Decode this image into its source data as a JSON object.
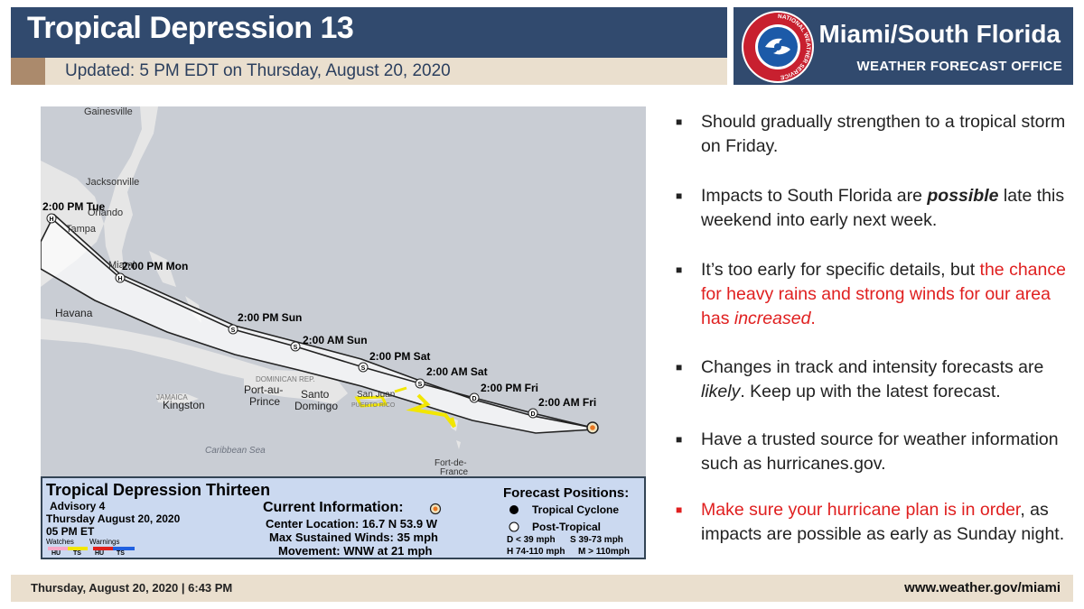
{
  "header": {
    "title": "Tropical Depression 13",
    "updated": "Updated: 5 PM EDT on Thursday, August 20, 2020",
    "office_name": "Miami/South Florida",
    "office_sub": "WEATHER FORECAST OFFICE",
    "logo_text": "NATIONAL WEATHER SERVICE"
  },
  "map": {
    "labels": {
      "gainesville": "Gainesville",
      "jacksonville": "Jacksonville",
      "orlando": "Orlando",
      "tampa": "Tampa",
      "miami": "Miami",
      "havana": "Havana",
      "kingston": "Kingston",
      "port_au_prince_1": "Port-au-",
      "port_au_prince_2": "Prince",
      "santo_domingo_1": "Santo",
      "santo_domingo_2": "Domingo",
      "dominican_republic": "DOMINICAN REP.",
      "san_juan": "San Juan",
      "jamaica": "JAMAICA",
      "puerto_rico": "PUERTO RICO",
      "fort_de_france_1": "Fort-de-",
      "fort_de_france_2": "France",
      "caribbean_sea": "Caribbean Sea"
    },
    "forecast_points": [
      {
        "label": "2:00 AM Fri",
        "symbol": "D"
      },
      {
        "label": "2:00 PM Fri",
        "symbol": "D"
      },
      {
        "label": "2:00 AM Sat",
        "symbol": "S"
      },
      {
        "label": "2:00 PM Sat",
        "symbol": "S"
      },
      {
        "label": "2:00 AM Sun",
        "symbol": "S"
      },
      {
        "label": "2:00 PM Sun",
        "symbol": "S"
      },
      {
        "label": "2:00 PM Mon",
        "symbol": "H"
      },
      {
        "label": "2:00 PM Tue",
        "symbol": "H"
      }
    ],
    "colors": {
      "ocean": "#c9cdd4",
      "land": "#e6e6e6",
      "track": "#222222",
      "watch": "#f2e600",
      "current_position": "#e87722"
    }
  },
  "info_box": {
    "storm_name": "Tropical Depression Thirteen",
    "advisory": "Advisory 4",
    "date": "Thursday August 20, 2020",
    "time": "05 PM ET",
    "watches_label": "Watches",
    "warnings_label": "Warnings",
    "legend_hu_1": "HU",
    "legend_ts_1": "TS",
    "legend_hu_2": "HU",
    "legend_ts_2": "TS",
    "current_title": "Current Information:",
    "center_location": "Center Location: 16.7 N  53.9 W",
    "max_winds": "Max Sustained Winds: 35 mph",
    "movement": "Movement: WNW at 21 mph",
    "forecast_title": "Forecast Positions:",
    "tropical_cyclone": "Tropical Cyclone",
    "post_tropical": "Post-Tropical",
    "key_d": "D < 39 mph",
    "key_s": "S 39-73 mph",
    "key_h": "H 74-110 mph",
    "key_m": "M > 110mph"
  },
  "bullets": [
    {
      "mark": "■",
      "parts": [
        "Should gradually strengthen to a tropical storm on Friday."
      ]
    },
    {
      "mark": "■",
      "parts": [
        "Impacts to South Florida are ",
        "possible",
        " late this weekend into early next week."
      ]
    },
    {
      "mark": "■",
      "parts": [
        "It’s too early for specific details, but ",
        "the chance for heavy rains and strong winds for our area has ",
        "increased",
        "."
      ]
    },
    {
      "mark": "■",
      "parts": [
        "Changes in track and intensity forecasts are ",
        "likely",
        ". Keep up with the latest forecast."
      ]
    },
    {
      "mark": "■",
      "parts": [
        "Have a trusted source for weather information such as hurricanes.gov."
      ]
    },
    {
      "mark": "■",
      "parts": [
        "Make sure your hurricane plan is in order",
        ", as impacts are possible as early as Sunday night."
      ]
    }
  ],
  "footer": {
    "date": "Thursday, August 20, 2020  |  6:43 PM",
    "url": "www.weather.gov/miami"
  }
}
